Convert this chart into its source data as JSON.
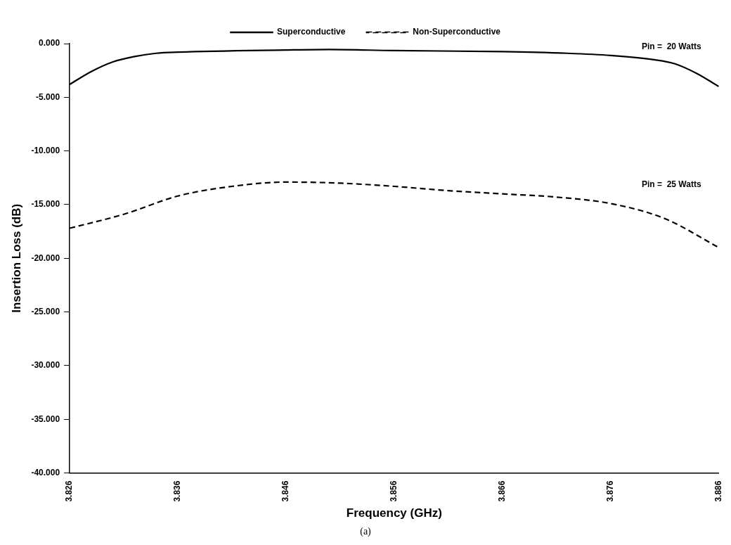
{
  "chart_data": {
    "type": "line",
    "xlabel": "Frequency (GHz)",
    "ylabel": "Insertion Loss (dB)",
    "xlim": [
      3.826,
      3.886
    ],
    "xticks": [
      3.826,
      3.836,
      3.846,
      3.856,
      3.866,
      3.876,
      3.886
    ],
    "ylim": [
      -40,
      0
    ],
    "yticks": [
      {
        "value": 0,
        "label": "0.000"
      },
      {
        "value": -5,
        "label": "-5.000"
      },
      {
        "value": -10,
        "label": "-10.000"
      },
      {
        "value": -15,
        "label": "-15.000"
      },
      {
        "value": -20,
        "label": "-20.000"
      },
      {
        "value": -25,
        "label": "-25.000"
      },
      {
        "value": -30,
        "label": "-30.000"
      },
      {
        "value": -35,
        "label": "-35.000"
      },
      {
        "value": -40,
        "label": "-40.000"
      }
    ],
    "grid": false,
    "legend": "top",
    "marker": "none",
    "series": [
      {
        "name": "Superconductive",
        "color": "#000000",
        "line_style": "solid",
        "x": [
          3.826,
          3.828,
          3.83,
          3.832,
          3.834,
          3.836,
          3.846,
          3.85,
          3.856,
          3.866,
          3.872,
          3.876,
          3.88,
          3.882,
          3.884,
          3.886
        ],
        "values": [
          -3.8,
          -2.6,
          -1.7,
          -1.2,
          -0.9,
          -0.8,
          -0.6,
          -0.55,
          -0.65,
          -0.75,
          -0.9,
          -1.1,
          -1.5,
          -1.9,
          -2.8,
          -4.0
        ]
      },
      {
        "name": "Non-Superconductive",
        "color": "#000000",
        "line_style": "dashed",
        "x": [
          3.826,
          3.831,
          3.836,
          3.841,
          3.846,
          3.851,
          3.856,
          3.861,
          3.866,
          3.871,
          3.876,
          3.881,
          3.886
        ],
        "values": [
          -17.2,
          -15.9,
          -14.2,
          -13.3,
          -12.9,
          -13.0,
          -13.3,
          -13.7,
          -14.0,
          -14.3,
          -14.9,
          -16.3,
          -19.0
        ]
      }
    ],
    "annotations": [
      "Pin =  20 Watts",
      "Pin =  25 Watts",
      "(a)"
    ]
  }
}
